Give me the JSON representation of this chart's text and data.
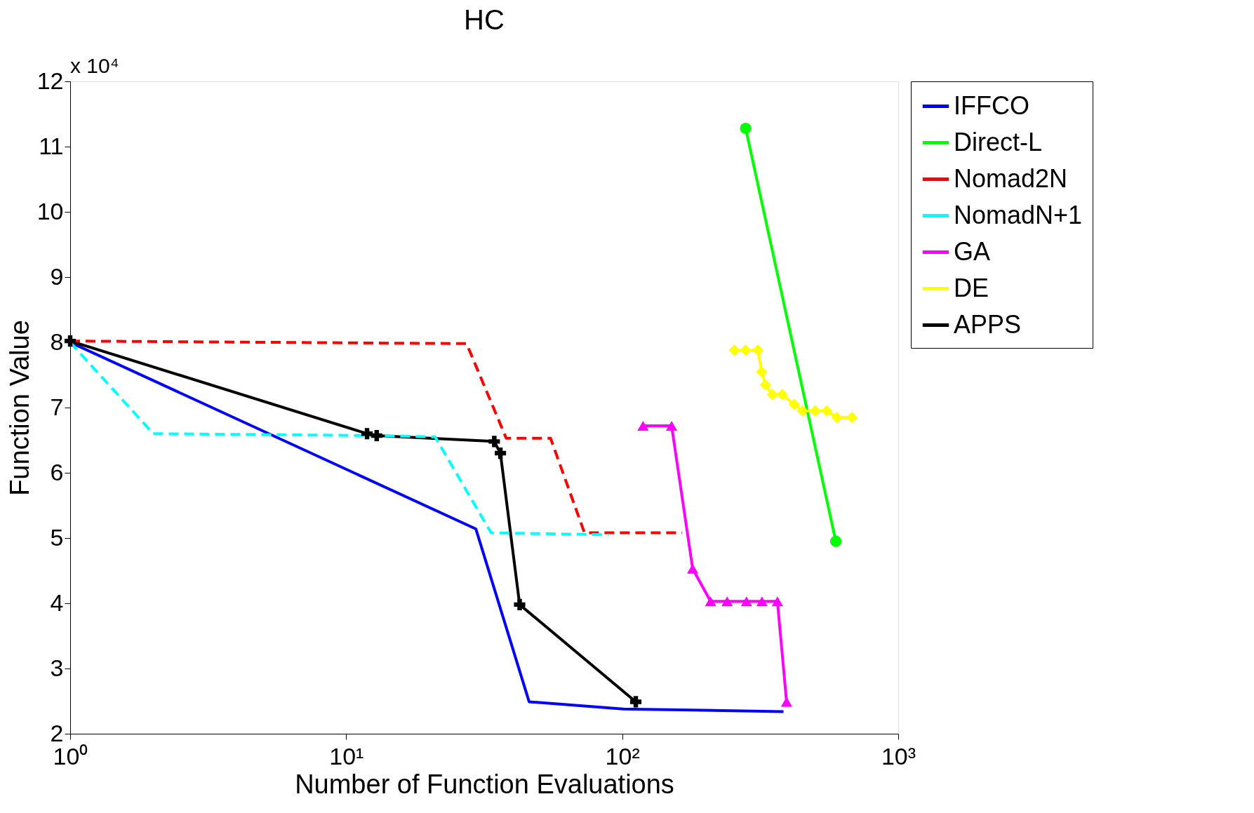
{
  "chart_data": {
    "type": "line",
    "title": "HC",
    "xlabel": "Number of Function  Evaluations",
    "ylabel": "Function Value",
    "annotations": [
      "x 10⁴"
    ],
    "log": "x",
    "grid": false,
    "legend": "right",
    "xlim": [
      1,
      1000
    ],
    "xticks": [
      {
        "value": 1,
        "label": "10⁰"
      },
      {
        "value": 10,
        "label": "10¹"
      },
      {
        "value": 100,
        "label": "10²"
      },
      {
        "value": 1000,
        "label": "10³"
      }
    ],
    "ylim": [
      2,
      12
    ],
    "yticks": [
      2,
      3,
      4,
      5,
      6,
      7,
      8,
      9,
      10,
      11,
      12
    ],
    "series": [
      {
        "name": "IFFCO",
        "color": "#0000ff",
        "marker": "none",
        "line_style": "solid",
        "x": [
          1,
          29.5,
          46,
          101,
          384
        ],
        "values": [
          8.0,
          5.14,
          2.49,
          2.38,
          2.34
        ]
      },
      {
        "name": "Direct-L",
        "color": "#00ff00",
        "marker": "circle",
        "line_style": "solid",
        "x": [
          280,
          594
        ],
        "values": [
          11.28,
          4.95
        ]
      },
      {
        "name": "Nomad2N",
        "color": "#ff0000",
        "marker": "none",
        "line_style": "dashed",
        "x": [
          1,
          27.3,
          38,
          55,
          73,
          165
        ],
        "values": [
          8.02,
          7.98,
          6.53,
          6.53,
          5.08,
          5.08
        ]
      },
      {
        "name": "NomadN+1",
        "color": "#00ffff",
        "marker": "none",
        "line_style": "dashed",
        "x": [
          1,
          2,
          12.9,
          21,
          33.5,
          89
        ],
        "values": [
          8.0,
          6.6,
          6.57,
          6.55,
          5.08,
          5.05
        ]
      },
      {
        "name": "GA",
        "color": "#ff00ff",
        "marker": "triangle",
        "line_style": "solid",
        "x": [
          119,
          151,
          180,
          209,
          240,
          282,
          321,
          365,
          394
        ],
        "values": [
          6.72,
          6.72,
          4.53,
          4.03,
          4.03,
          4.03,
          4.03,
          4.03,
          2.49
        ]
      },
      {
        "name": "DE",
        "color": "#ffff00",
        "marker": "diamond",
        "line_style": "solid",
        "x": [
          255,
          280,
          310,
          320,
          330,
          350,
          380,
          420,
          450,
          500,
          550,
          600,
          680
        ],
        "values": [
          7.88,
          7.88,
          7.88,
          7.55,
          7.35,
          7.2,
          7.2,
          7.05,
          6.95,
          6.95,
          6.95,
          6.85,
          6.85
        ]
      },
      {
        "name": "APPS",
        "color": "#000000",
        "marker": "cross",
        "line_style": "solid",
        "x": [
          1,
          11.9,
          12.9,
          34.4,
          36.2,
          42.5,
          112
        ],
        "values": [
          8.02,
          6.6,
          6.57,
          6.48,
          6.3,
          3.98,
          2.49
        ]
      }
    ]
  }
}
